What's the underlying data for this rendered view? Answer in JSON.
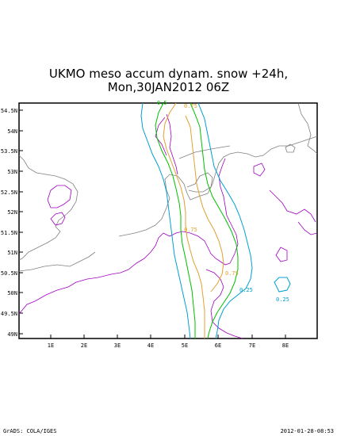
{
  "title_line1": "UKMO meso accum dynam. snow +24h,",
  "title_line2": "Mon,30JAN2012 06Z",
  "footer_left": "GrADS: COLA/IGES",
  "footer_right": "2012-01-28-08:53",
  "lat_labels": [
    "54.5N",
    "54N",
    "53.5N",
    "53N",
    "52.5N",
    "52N",
    "51.5N",
    "51N",
    "50.5N",
    "50N",
    "49.5N",
    "49N"
  ],
  "lon_labels": [
    "1E",
    "2E",
    "3E",
    "4E",
    "5E",
    "6E",
    "7E",
    "8E"
  ],
  "contour_labels": {
    "l1": "0.5",
    "l2": "0.75",
    "l3": "0.75",
    "l4": "0.75",
    "l5": "0.25",
    "l6": "0.25"
  },
  "colors": {
    "coast": "#808080",
    "border": "#a000c0",
    "c025": "#00a0d0",
    "c05": "#00c000",
    "c075": "#e0a030"
  }
}
